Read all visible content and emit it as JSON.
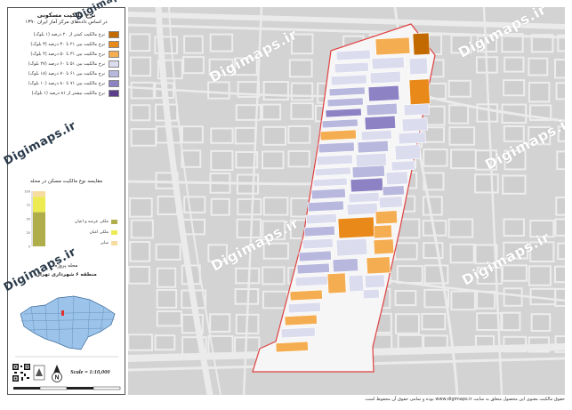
{
  "legend": {
    "title": "نرخ مالکیت مسکونی",
    "subtitle": "در اساس داده‌های مرکز آمار ایران ۱۳۹۰",
    "classes": [
      {
        "label": "نرخ مالکیت کمتر از ۲۰ درصد (۱ بلوک)",
        "color": "#c26a00"
      },
      {
        "label": "نرخ مالکیت بین ۲۱ تا ۳۰ درصد (۳ بلوک)",
        "color": "#e8891a"
      },
      {
        "label": "نرخ مالکیت بین ۳۱ تا ۵۰ درصد (۴ بلوک)",
        "color": "#f5ad52"
      },
      {
        "label": "نرخ مالکیت بین ۵۱ تا ۶۰ درصد (۲۷ بلوک)",
        "color": "#dcdcef"
      },
      {
        "label": "نرخ مالکیت بین ۶۱ تا ۷۰ درصد (۱۸ بلوک)",
        "color": "#b8b8de"
      },
      {
        "label": "نرخ مالکیت بین ۷۱ تا ۸۰ درصد (۱۰ بلوک)",
        "color": "#8c82c4"
      },
      {
        "label": "نرخ مالکیت بیشتر از ۸۱ درصد (۱ بلوک)",
        "color": "#5a3e8c"
      }
    ]
  },
  "chart": {
    "title": "مقایسه نوع مالکیت مسکن در محله",
    "tick_labels": [
      "100",
      "75",
      "50",
      "25",
      "0"
    ],
    "categories": [
      {
        "label": "ملکی عرصه و اعیان",
        "color": "#b0ae4a"
      },
      {
        "label": "ملکی اعیان",
        "color": "#eceb52"
      },
      {
        "label": "سایر",
        "color": "#f7dca0"
      }
    ]
  },
  "chart_data": {
    "type": "bar",
    "categories": [
      "محله"
    ],
    "series": [
      {
        "name": "ملکی عرصه و اعیان",
        "values": [
          62
        ]
      },
      {
        "name": "ملکی اعیان",
        "values": [
          28
        ]
      },
      {
        "name": "سایر",
        "values": [
          10
        ]
      }
    ],
    "ylim": [
      0,
      100
    ]
  },
  "location": {
    "neighborhood": "محله پروژه",
    "district": "منطقه ۶ شهرداری تهران"
  },
  "scale": {
    "label": "Scale = 1:10,000"
  },
  "north": {
    "label": "N"
  },
  "watermark": {
    "text": "Digimaps.ir"
  },
  "footer": {
    "text": "حقوق مالکیت معنوی این محصول متعلق به سایت www.digimaps.ir بوده و تمامی حقوق آن محفوظ است."
  },
  "colors": {
    "map_bg": "#d3d3d3",
    "street": "#e8e8e8",
    "boundary": "#e04040",
    "project_area": "#f6f6f6"
  }
}
